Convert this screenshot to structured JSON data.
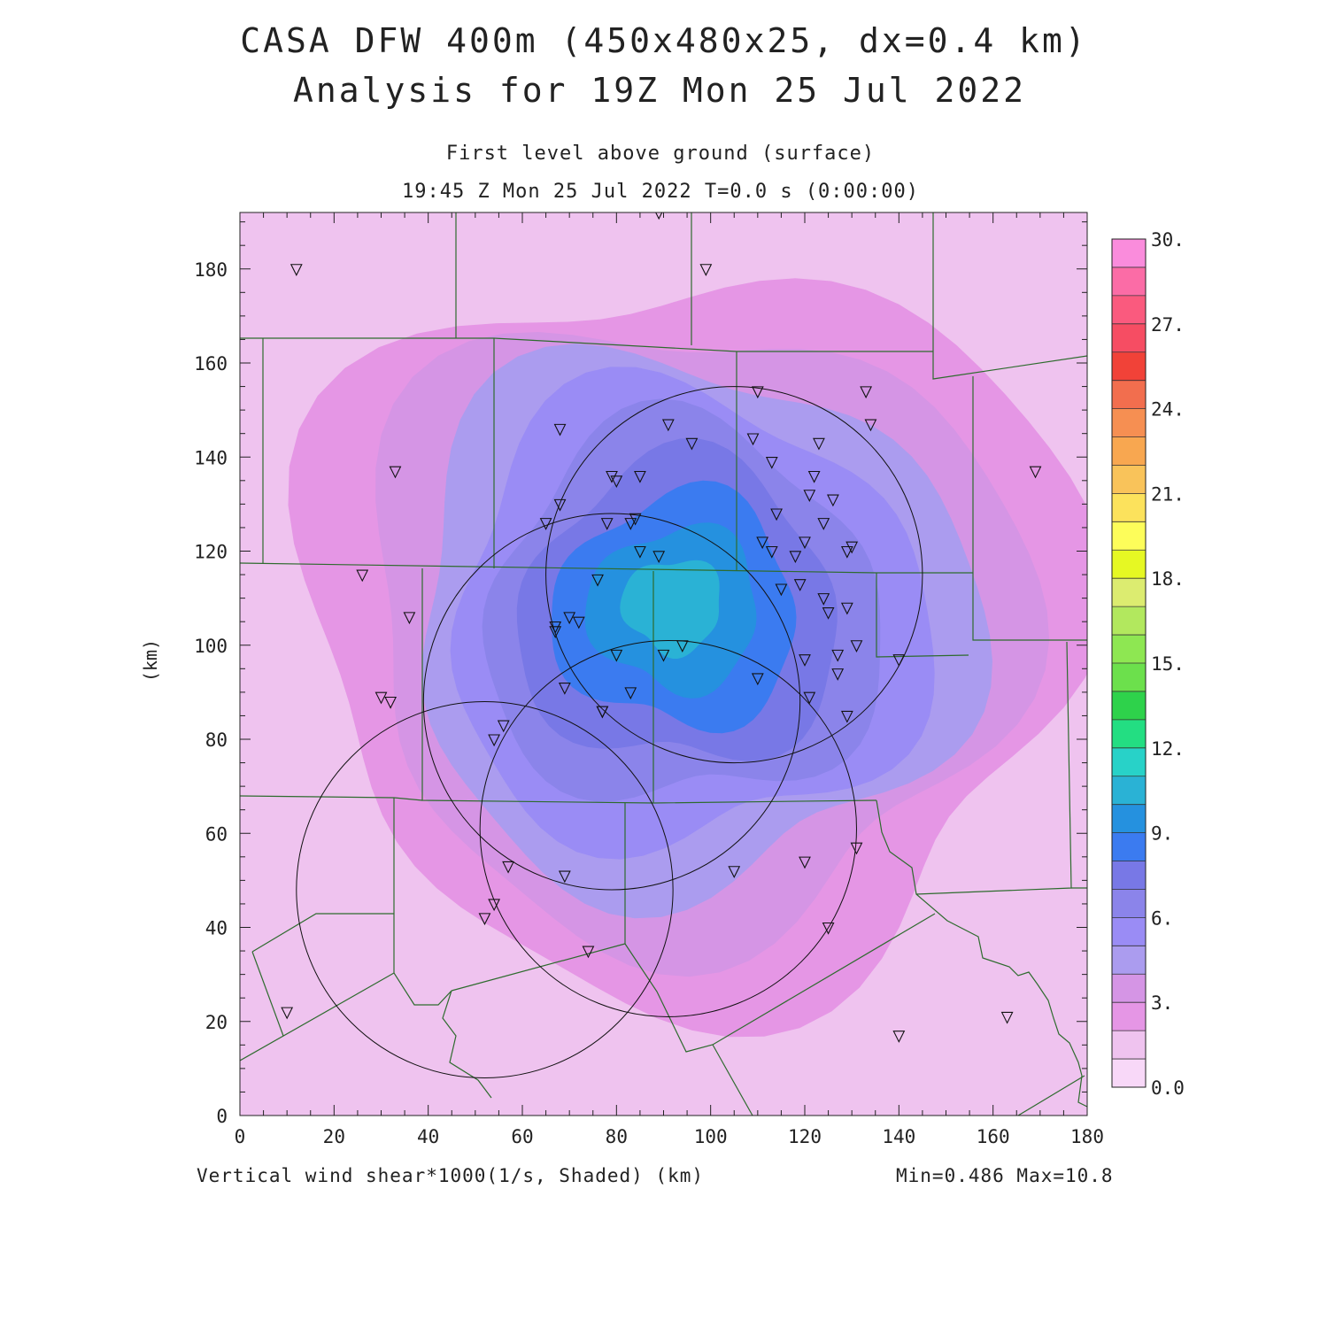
{
  "title": {
    "line1": "CASA DFW 400m (450x480x25, dx=0.4 km)",
    "line2": "Analysis for 19Z Mon 25 Jul 2022"
  },
  "subtitle": {
    "level": "First level above ground (surface)",
    "time": "19:45 Z Mon 25 Jul 2022   T=0.0 s (0:00:00)"
  },
  "caption": "Vertical wind shear*1000(1/s, Shaded)  (km)",
  "minmax": "Min=0.486 Max=10.8",
  "y_unit": "(km)",
  "axes": {
    "x_ticks": [
      0,
      20,
      40,
      60,
      80,
      100,
      120,
      140,
      160,
      180
    ],
    "y_ticks": [
      0,
      20,
      40,
      60,
      80,
      100,
      120,
      140,
      160,
      180
    ],
    "xlim": [
      0,
      180
    ],
    "ylim": [
      0,
      192
    ]
  },
  "colorbar": {
    "labels": [
      "0.0",
      "3.",
      "6.",
      "9.",
      "12.",
      "15.",
      "18.",
      "21.",
      "24.",
      "27.",
      "30."
    ],
    "colors": [
      "#f8d8f8",
      "#efc3ef",
      "#e596e5",
      "#d595e5",
      "#ab9cef",
      "#9a8cf5",
      "#8b84ea",
      "#7878e6",
      "#3b7bf0",
      "#2591df",
      "#2ab2d5",
      "#28d2c8",
      "#23de82",
      "#2ed24b",
      "#6ce04c",
      "#8ee752",
      "#b2e85e",
      "#dcec70",
      "#e6f823",
      "#fdfd5a",
      "#fce25c",
      "#f9c35a",
      "#f8a750",
      "#f68f52",
      "#f26e4e",
      "#f14238",
      "#f64d63",
      "#fa5a7e",
      "#fb6ca6",
      "#fa8cdc"
    ]
  },
  "shear_levels": [
    {
      "level": 1.5,
      "color": "#e596e5"
    },
    {
      "level": 3.0,
      "color": "#d595e5"
    },
    {
      "level": 4.0,
      "color": "#ab9cef"
    },
    {
      "level": 5.0,
      "color": "#9a8cf5"
    },
    {
      "level": 6.0,
      "color": "#8b84ea"
    },
    {
      "level": 7.0,
      "color": "#7878e6"
    },
    {
      "level": 8.0,
      "color": "#3b7bf0"
    },
    {
      "level": 9.0,
      "color": "#2591df"
    },
    {
      "level": 10.0,
      "color": "#2ab2d5"
    }
  ],
  "radar_rings": [
    {
      "cx": 105,
      "cy": 115,
      "r": 40
    },
    {
      "cx": 79,
      "cy": 88,
      "r": 40
    },
    {
      "cx": 91,
      "cy": 61,
      "r": 40
    },
    {
      "cx": 52,
      "cy": 48,
      "r": 40
    }
  ],
  "stations": [
    [
      12,
      180
    ],
    [
      99,
      180
    ],
    [
      89,
      192
    ],
    [
      33,
      137
    ],
    [
      110,
      154
    ],
    [
      133,
      154
    ],
    [
      134,
      147
    ],
    [
      91,
      147
    ],
    [
      68,
      146
    ],
    [
      96,
      143
    ],
    [
      109,
      144
    ],
    [
      123,
      143
    ],
    [
      113,
      139
    ],
    [
      169,
      137
    ],
    [
      79,
      136
    ],
    [
      80,
      135
    ],
    [
      85,
      136
    ],
    [
      122,
      136
    ],
    [
      121,
      132
    ],
    [
      126,
      131
    ],
    [
      68,
      130
    ],
    [
      114,
      128
    ],
    [
      84,
      127
    ],
    [
      83,
      126
    ],
    [
      78,
      126
    ],
    [
      65,
      126
    ],
    [
      124,
      126
    ],
    [
      111,
      122
    ],
    [
      120,
      122
    ],
    [
      130,
      121
    ],
    [
      113,
      120
    ],
    [
      129,
      120
    ],
    [
      118,
      119
    ],
    [
      85,
      120
    ],
    [
      89,
      119
    ],
    [
      26,
      115
    ],
    [
      76,
      114
    ],
    [
      115,
      112
    ],
    [
      119,
      113
    ],
    [
      124,
      110
    ],
    [
      125,
      107
    ],
    [
      129,
      108
    ],
    [
      36,
      106
    ],
    [
      70,
      106
    ],
    [
      72,
      105
    ],
    [
      67,
      104
    ],
    [
      67,
      103
    ],
    [
      94,
      100
    ],
    [
      131,
      100
    ],
    [
      90,
      98
    ],
    [
      120,
      97
    ],
    [
      127,
      98
    ],
    [
      80,
      98
    ],
    [
      140,
      97
    ],
    [
      127,
      94
    ],
    [
      110,
      93
    ],
    [
      69,
      91
    ],
    [
      83,
      90
    ],
    [
      121,
      89
    ],
    [
      30,
      89
    ],
    [
      32,
      88
    ],
    [
      77,
      86
    ],
    [
      77,
      86
    ],
    [
      129,
      85
    ],
    [
      54,
      80
    ],
    [
      56,
      83
    ],
    [
      131,
      57
    ],
    [
      120,
      54
    ],
    [
      57,
      53
    ],
    [
      105,
      52
    ],
    [
      69,
      51
    ],
    [
      54,
      45
    ],
    [
      52,
      42
    ],
    [
      125,
      40
    ],
    [
      74,
      35
    ],
    [
      10,
      22
    ],
    [
      163,
      21
    ],
    [
      140,
      17
    ]
  ]
}
